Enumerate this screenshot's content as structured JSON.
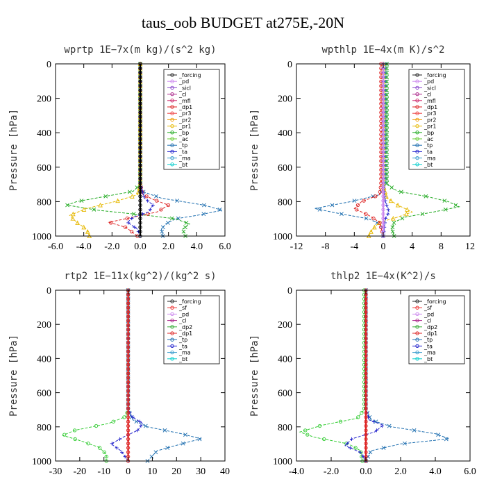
{
  "title": "taus_oob  BUDGET at275E,-20N",
  "chart_data": [
    {
      "type": "line",
      "title": "wprtp   1E−7x(m kg)/(s^2 kg)",
      "ylabel": "Pressure [hPa]",
      "xlim": [
        -6,
        6
      ],
      "ylim": [
        1000,
        0
      ],
      "xticks": [
        "-6.0",
        "-4.0",
        "-2.0",
        "0.0",
        "2.0",
        "4.0",
        "6.0"
      ],
      "xtick_values": [
        -6,
        -4,
        -2,
        0,
        2,
        4,
        6
      ],
      "yticks": [
        "0",
        "200",
        "400",
        "600",
        "800",
        "1000"
      ],
      "ytick_values": [
        0,
        200,
        400,
        600,
        800,
        1000
      ],
      "legend": [
        "_forcing",
        "_pd",
        "_sicl",
        "_cl",
        "_mfl",
        "_dp1",
        "_pr3",
        "_pr2",
        "_pr1",
        "_bp",
        "_ac",
        "_tp",
        "_ta",
        "_ma",
        "_bt"
      ],
      "series": [
        {
          "name": "_tp",
          "color": "#1f6fb0",
          "marker": "x",
          "p": [
            0,
            700,
            740,
            780,
            820,
            850,
            880,
            900,
            930,
            960,
            1000
          ],
          "x": [
            0,
            0,
            0.1,
            1.5,
            4.5,
            5.8,
            4.0,
            2.5,
            1.8,
            1.5,
            1.6
          ]
        },
        {
          "name": "_bp",
          "color": "#22aa22",
          "marker": "x",
          "p": [
            0,
            700,
            740,
            770,
            800,
            820,
            850,
            880,
            900,
            930,
            960,
            1000
          ],
          "x": [
            0,
            0,
            -0.5,
            -2.5,
            -4.5,
            -5.2,
            -3.0,
            0.5,
            2.5,
            3.5,
            3.0,
            3.2
          ]
        },
        {
          "name": "_pr1",
          "color": "#e6b800",
          "marker": "^",
          "p": [
            0,
            700,
            760,
            800,
            840,
            880,
            920,
            960,
            1000
          ],
          "x": [
            0,
            0,
            -0.2,
            -1.8,
            -3.8,
            -5.0,
            -4.5,
            -3.8,
            -3.6
          ]
        },
        {
          "name": "_dp1",
          "color": "#dd2222",
          "marker": "o",
          "p": [
            0,
            700,
            760,
            790,
            820,
            860,
            890,
            920,
            950,
            1000
          ],
          "x": [
            0,
            0,
            0.2,
            1.0,
            2.0,
            1.2,
            -0.5,
            -2.2,
            -1.0,
            -0.2
          ]
        },
        {
          "name": "_ta",
          "color": "#2222cc",
          "marker": "+",
          "p": [
            0,
            700,
            780,
            820,
            860,
            890,
            920,
            960,
            1000
          ],
          "x": [
            0,
            0,
            0.3,
            0.9,
            0.6,
            -0.5,
            -0.9,
            -0.2,
            0
          ]
        },
        {
          "name": "_forcing",
          "color": "#000000",
          "marker": "o",
          "p": [
            0,
            1000
          ],
          "x": [
            0,
            0
          ]
        }
      ]
    },
    {
      "type": "line",
      "title": "wpthlp   1E−4x(m K)/s^2",
      "ylabel": "Pressure [hPa]",
      "xlim": [
        -12,
        12
      ],
      "ylim": [
        1000,
        0
      ],
      "xticks": [
        "-12",
        "-8",
        "-4",
        "0",
        "4",
        "8",
        "12"
      ],
      "xtick_values": [
        -12,
        -8,
        -4,
        0,
        4,
        8,
        12
      ],
      "yticks": [
        "0",
        "200",
        "400",
        "600",
        "800",
        "1000"
      ],
      "ytick_values": [
        0,
        200,
        400,
        600,
        800,
        1000
      ],
      "legend": [
        "_forcing",
        "_pd",
        "_sicl",
        "_cl",
        "_mfl",
        "_dp1",
        "_pr3",
        "_pr2",
        "_pr1",
        "_bp",
        "_ac",
        "_tp",
        "_ta",
        "_ma",
        "_bt"
      ],
      "series": [
        {
          "name": "_tp",
          "color": "#1f6fb0",
          "marker": "x",
          "p": [
            0,
            700,
            760,
            800,
            840,
            870,
            900,
            930,
            960,
            1000
          ],
          "x": [
            0.3,
            0.3,
            -0.5,
            -4.5,
            -9.5,
            -6.0,
            -2.0,
            -0.5,
            0,
            0
          ]
        },
        {
          "name": "_bp",
          "color": "#22aa22",
          "marker": "x",
          "p": [
            0,
            700,
            740,
            770,
            800,
            830,
            860,
            890,
            920,
            960,
            1000
          ],
          "x": [
            0.5,
            0.5,
            2.0,
            6.0,
            9.0,
            10.5,
            7.0,
            3.0,
            1.5,
            1.2,
            1.5
          ]
        },
        {
          "name": "_pr1",
          "color": "#e6b800",
          "marker": "^",
          "p": [
            0,
            700,
            780,
            820,
            860,
            890,
            920,
            960,
            1000
          ],
          "x": [
            0,
            0,
            0.5,
            2.0,
            4.0,
            2.0,
            -0.5,
            -1.5,
            -2.0
          ]
        },
        {
          "name": "_dp1",
          "color": "#dd2222",
          "marker": "o",
          "p": [
            0,
            700,
            760,
            800,
            840,
            880,
            920,
            1000
          ],
          "x": [
            -0.3,
            -0.3,
            -0.5,
            -3.0,
            -4.0,
            -2.0,
            -0.5,
            0
          ]
        },
        {
          "name": "_ta",
          "color": "#2222cc",
          "marker": "+",
          "p": [
            0,
            700,
            800,
            860,
            900,
            1000
          ],
          "x": [
            0,
            0,
            0.3,
            0.8,
            0.3,
            0
          ]
        },
        {
          "name": "_pd",
          "color": "#cc88ee",
          "marker": "o",
          "p": [
            0,
            1000
          ],
          "x": [
            0,
            0
          ]
        }
      ]
    },
    {
      "type": "line",
      "title": "rtp2   1E−11x(kg^2)/(kg^2 s)",
      "ylabel": "Pressure [hPa]",
      "xlim": [
        -30,
        40
      ],
      "ylim": [
        1000,
        0
      ],
      "xticks": [
        "-30",
        "-20",
        "-10",
        "0",
        "10",
        "20",
        "30",
        "40"
      ],
      "xtick_values": [
        -30,
        -20,
        -10,
        0,
        10,
        20,
        30,
        40
      ],
      "yticks": [
        "0",
        "200",
        "400",
        "600",
        "800",
        "1000"
      ],
      "ytick_values": [
        0,
        200,
        400,
        600,
        800,
        1000
      ],
      "legend": [
        "_forcing",
        "_sf",
        "_pd",
        "_cl",
        "_dp2",
        "_dp1",
        "_tp",
        "_ta",
        "_ma",
        "_bt"
      ],
      "series": [
        {
          "name": "_tp",
          "color": "#1f6fb0",
          "marker": "x",
          "p": [
            0,
            700,
            760,
            800,
            840,
            870,
            900,
            940,
            1000
          ],
          "x": [
            0,
            0,
            2.0,
            8.0,
            22.0,
            30.0,
            22.0,
            12.0,
            8.0
          ]
        },
        {
          "name": "_dp1",
          "color": "#33cc33",
          "marker": "o",
          "p": [
            0,
            700,
            740,
            780,
            820,
            850,
            880,
            920,
            960,
            1000
          ],
          "x": [
            0,
            0,
            -1.0,
            -8.0,
            -22.0,
            -27.0,
            -20.0,
            -12.0,
            -9.0,
            -9.0
          ]
        },
        {
          "name": "_ta",
          "color": "#2222cc",
          "marker": "+",
          "p": [
            0,
            700,
            740,
            780,
            820,
            860,
            900,
            940,
            1000
          ],
          "x": [
            0,
            0,
            1.5,
            6.0,
            4.0,
            -2.0,
            -7.0,
            -3.0,
            0
          ]
        },
        {
          "name": "_forcing",
          "color": "#dd2222",
          "marker": "o",
          "p": [
            0,
            1000
          ],
          "x": [
            0,
            0
          ]
        }
      ]
    },
    {
      "type": "line",
      "title": "thlp2   1E−4x(K^2)/s",
      "ylabel": "Pressure [hPa]",
      "xlim": [
        -4,
        6
      ],
      "ylim": [
        1000,
        0
      ],
      "xticks": [
        "-4.0",
        "-2.0",
        "0.0",
        "2.0",
        "4.0",
        "6.0"
      ],
      "xtick_values": [
        -4,
        -2,
        0,
        2,
        4,
        6
      ],
      "yticks": [
        "0",
        "200",
        "400",
        "600",
        "800",
        "1000"
      ],
      "ytick_values": [
        0,
        200,
        400,
        600,
        800,
        1000
      ],
      "legend": [
        "_forcing",
        "_sf",
        "_pd",
        "_cl",
        "_dp2",
        "_dp1",
        "_tp",
        "_ta",
        "_ma",
        "_bt"
      ],
      "series": [
        {
          "name": "_tp",
          "color": "#1f6fb0",
          "marker": "x",
          "p": [
            0,
            700,
            760,
            800,
            840,
            870,
            900,
            940,
            1000
          ],
          "x": [
            0,
            0,
            0.3,
            1.5,
            4.0,
            4.8,
            2.0,
            0.3,
            0
          ]
        },
        {
          "name": "_dp1",
          "color": "#33cc33",
          "marker": "o",
          "p": [
            0,
            700,
            750,
            790,
            830,
            860,
            900,
            940,
            1000
          ],
          "x": [
            -0.1,
            -0.1,
            -0.5,
            -2.5,
            -3.8,
            -3.0,
            -1.0,
            -0.3,
            -0.2
          ]
        },
        {
          "name": "_ta",
          "color": "#2222cc",
          "marker": "+",
          "p": [
            0,
            700,
            760,
            790,
            830,
            870,
            910,
            950,
            1000
          ],
          "x": [
            0,
            0,
            0.2,
            1.0,
            0.5,
            -0.8,
            -1.2,
            -0.3,
            0
          ]
        },
        {
          "name": "_forcing",
          "color": "#dd2222",
          "marker": "o",
          "p": [
            0,
            1000
          ],
          "x": [
            0,
            0
          ]
        }
      ]
    }
  ],
  "legend_colors": {
    "_forcing": "#222222",
    "_pd": "#cc88ee",
    "_sicl": "#8844cc",
    "_cl": "#aa2288",
    "_mfl": "#cc2266",
    "_dp1": "#dd2222",
    "_pr3": "#ee4444",
    "_pr2": "#ee9900",
    "_pr1": "#e6b800",
    "_bp": "#22aa22",
    "_ac": "#66cc33",
    "_tp": "#1f6fb0",
    "_ta": "#2222cc",
    "_ma": "#3399cc",
    "_bt": "#00cccc",
    "_sf": "#ee3333",
    "_dp2": "#33aa33"
  }
}
